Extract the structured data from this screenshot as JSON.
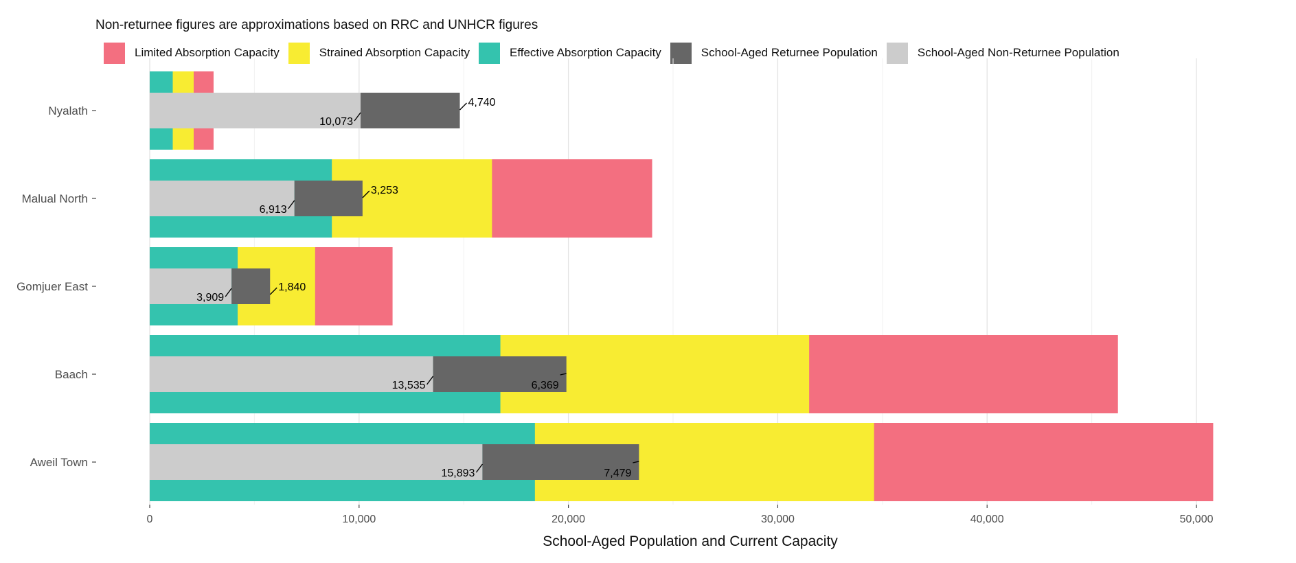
{
  "subtitle": "Non-returnee figures are approximations based on RRC and UNHCR figures",
  "legend": [
    {
      "label": "Limited Absorption Capacity",
      "color": "#F36F80"
    },
    {
      "label": "Strained Absorption Capacity",
      "color": "#F8EC32"
    },
    {
      "label": "Effective Absorption Capacity",
      "color": "#34C3AE"
    },
    {
      "label": "School-Aged Returnee Population",
      "color": "#666666"
    },
    {
      "label": "School-Aged Non-Returnee Population",
      "color": "#CCCCCC"
    }
  ],
  "chart_data": {
    "type": "bar",
    "orientation": "horizontal",
    "xlabel": "School-Aged Population and Current Capacity",
    "ylabel": "",
    "xlim": [
      0,
      52000
    ],
    "xticks": [
      0,
      10000,
      20000,
      30000,
      40000,
      50000
    ],
    "xtick_labels": [
      "0",
      "10,000",
      "20,000",
      "30,000",
      "40,000",
      "50,000"
    ],
    "grid": "vertical major and minor gridlines",
    "legend_position": "top",
    "categories": [
      "Nyalath",
      "Malual North",
      "Gomjuer East",
      "Baach",
      "Aweil Town"
    ],
    "capacity_stacked_cumulative": {
      "effective": [
        1100,
        8700,
        4200,
        16750,
        18400
      ],
      "strained": [
        2100,
        16350,
        7900,
        31500,
        34600
      ],
      "limited": [
        3050,
        24000,
        11600,
        46250,
        50800
      ]
    },
    "population": {
      "non_returnee": [
        10073,
        6913,
        3909,
        13535,
        15893
      ],
      "returnee": [
        4740,
        3253,
        1840,
        6369,
        7479
      ]
    },
    "data_labels": {
      "non_returnee": [
        "10,073",
        "6,913",
        "3,909",
        "13,535",
        "15,893"
      ],
      "returnee": [
        "4,740",
        "3,253",
        "1,840",
        "6,369",
        "7,479"
      ]
    },
    "colors": {
      "limited": "#F36F80",
      "strained": "#F8EC32",
      "effective": "#34C3AE",
      "returnee": "#666666",
      "non_returnee": "#CCCCCC"
    }
  }
}
